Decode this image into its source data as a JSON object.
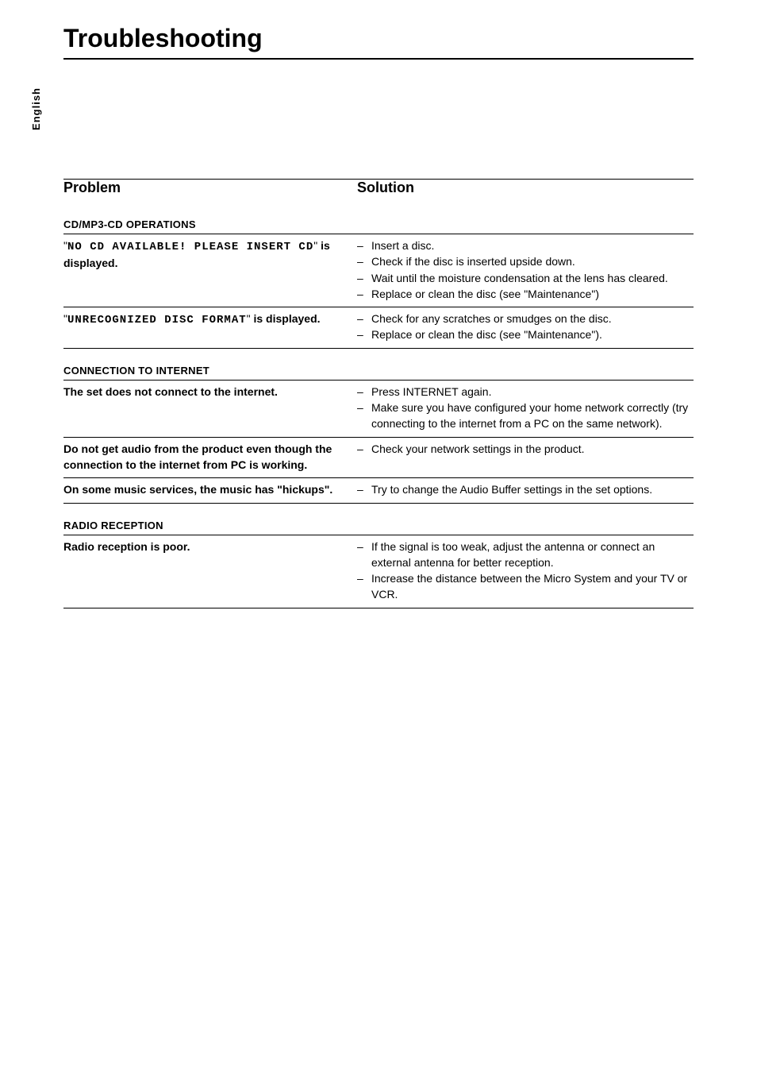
{
  "title": "Troubleshooting",
  "side_label": "English",
  "header": {
    "problem": "Problem",
    "solution": "Solution"
  },
  "sections": [
    {
      "title": "CD/MP3-CD OPERATIONS",
      "rows": [
        {
          "problem_parts": [
            {
              "text": "\"",
              "cls": ""
            },
            {
              "text": "NO CD AVAILABLE! PLEASE INSERT CD",
              "cls": "display-font"
            },
            {
              "text": "\" ",
              "cls": ""
            },
            {
              "text": "is displayed.",
              "cls": "bold"
            }
          ],
          "solutions": [
            "Insert a disc.",
            "Check if the disc is inserted upside down.",
            "Wait until the moisture condensation at the lens has cleared.",
            "Replace or clean the disc (see \"Maintenance\")"
          ]
        },
        {
          "problem_parts": [
            {
              "text": "\"",
              "cls": ""
            },
            {
              "text": "UNRECOGNIZED DISC FORMAT",
              "cls": "display-font"
            },
            {
              "text": "\" ",
              "cls": ""
            },
            {
              "text": "is displayed.",
              "cls": "bold"
            }
          ],
          "solutions": [
            "Check for any scratches or smudges on the disc.",
            "Replace or clean the disc (see \"Maintenance\")."
          ]
        }
      ]
    },
    {
      "title": "CONNECTION TO INTERNET",
      "rows": [
        {
          "problem_parts": [
            {
              "text": "The set does not connect to the internet.",
              "cls": "bold"
            }
          ],
          "solutions": [
            "Press INTERNET again.",
            "Make sure you have configured your home network correctly (try connecting to the internet from a PC on the same network)."
          ]
        },
        {
          "problem_parts": [
            {
              "text": "Do not get audio from the product even though the connection to the internet from PC is working.",
              "cls": "bold"
            }
          ],
          "solutions": [
            "Check your network settings in the product."
          ]
        },
        {
          "problem_parts": [
            {
              "text": "On some music services, the music has \"hickups\".",
              "cls": "bold"
            }
          ],
          "solutions": [
            "Try to change the Audio Buffer settings in the set options."
          ]
        }
      ]
    },
    {
      "title": "RADIO RECEPTION",
      "rows": [
        {
          "problem_parts": [
            {
              "text": "Radio reception is poor.",
              "cls": "bold"
            }
          ],
          "solutions": [
            "If the signal is too weak, adjust the antenna or connect an external antenna for better reception.",
            "Increase the distance between the Micro System and your TV or VCR."
          ]
        }
      ]
    }
  ]
}
